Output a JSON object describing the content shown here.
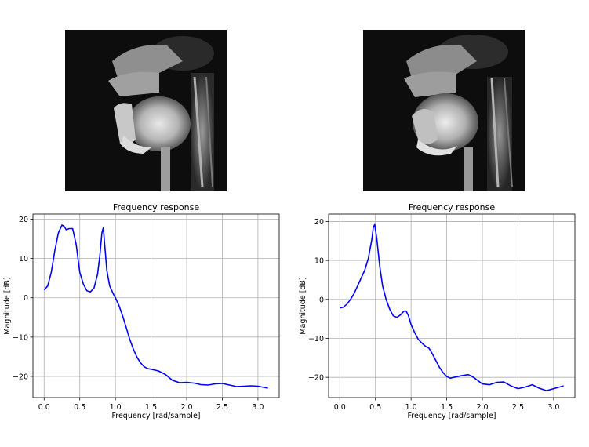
{
  "images": [
    {
      "label": "MRI sagittal frame 1"
    },
    {
      "label": "MRI sagittal frame 2"
    }
  ],
  "chart_data": [
    {
      "type": "line",
      "title": "Frequency response",
      "xlabel": "Frequency [rad/sample]",
      "ylabel": "Magnitude [dB]",
      "xlim": [
        -0.157,
        3.298
      ],
      "ylim": [
        -25.4,
        21.3
      ],
      "xticks": [
        0.0,
        0.5,
        1.0,
        1.5,
        2.0,
        2.5,
        3.0
      ],
      "xtick_labels": [
        "0.0",
        "0.5",
        "1.0",
        "1.5",
        "2.0",
        "2.5",
        "3.0"
      ],
      "yticks": [
        -20,
        -10,
        0,
        10,
        20
      ],
      "ytick_labels": [
        "−20",
        "−10",
        "0",
        "10",
        "20"
      ],
      "grid": true,
      "series": [
        {
          "name": "response",
          "color": "#0000ff",
          "x": [
            0.0,
            0.05,
            0.1,
            0.15,
            0.2,
            0.25,
            0.28,
            0.31,
            0.35,
            0.4,
            0.45,
            0.5,
            0.55,
            0.6,
            0.65,
            0.7,
            0.75,
            0.78,
            0.81,
            0.83,
            0.85,
            0.88,
            0.92,
            0.97,
            1.0,
            1.05,
            1.1,
            1.15,
            1.2,
            1.25,
            1.3,
            1.35,
            1.4,
            1.45,
            1.5,
            1.6,
            1.7,
            1.8,
            1.9,
            2.0,
            2.1,
            2.2,
            2.3,
            2.4,
            2.5,
            2.6,
            2.7,
            2.8,
            2.9,
            3.0,
            3.14
          ],
          "y": [
            2.0,
            3.0,
            6.5,
            12.0,
            16.5,
            18.5,
            18.2,
            17.3,
            17.6,
            17.6,
            13.5,
            6.5,
            3.5,
            1.8,
            1.5,
            2.5,
            6.0,
            10.5,
            16.5,
            17.8,
            13.5,
            7.0,
            3.0,
            1.0,
            0.0,
            -2.0,
            -4.5,
            -7.5,
            -10.5,
            -13.0,
            -15.0,
            -16.5,
            -17.5,
            -18.0,
            -18.2,
            -18.6,
            -19.5,
            -21.0,
            -21.6,
            -21.5,
            -21.7,
            -22.1,
            -22.2,
            -21.9,
            -21.8,
            -22.2,
            -22.6,
            -22.5,
            -22.4,
            -22.5,
            -23.0
          ]
        }
      ]
    },
    {
      "type": "line",
      "title": "Frequency response",
      "xlabel": "Frequency [rad/sample]",
      "ylabel": "Magnitude [dB]",
      "xlim": [
        -0.157,
        3.298
      ],
      "ylim": [
        -25.2,
        21.9
      ],
      "xticks": [
        0.0,
        0.5,
        1.0,
        1.5,
        2.0,
        2.5,
        3.0
      ],
      "xtick_labels": [
        "0.0",
        "0.5",
        "1.0",
        "1.5",
        "2.0",
        "2.5",
        "3.0"
      ],
      "yticks": [
        -20,
        -10,
        0,
        10,
        20
      ],
      "ytick_labels": [
        "−20",
        "−10",
        "0",
        "10",
        "20"
      ],
      "grid": true,
      "series": [
        {
          "name": "response",
          "color": "#0000ff",
          "x": [
            0.0,
            0.05,
            0.1,
            0.15,
            0.2,
            0.25,
            0.3,
            0.35,
            0.4,
            0.45,
            0.47,
            0.49,
            0.52,
            0.56,
            0.6,
            0.65,
            0.7,
            0.75,
            0.8,
            0.85,
            0.9,
            0.93,
            0.96,
            1.0,
            1.05,
            1.1,
            1.15,
            1.2,
            1.25,
            1.3,
            1.35,
            1.4,
            1.45,
            1.5,
            1.55,
            1.6,
            1.7,
            1.8,
            1.85,
            1.9,
            2.0,
            2.1,
            2.2,
            2.3,
            2.4,
            2.5,
            2.6,
            2.7,
            2.8,
            2.9,
            3.0,
            3.14
          ],
          "y": [
            -2.2,
            -2.0,
            -1.2,
            0.0,
            1.5,
            3.5,
            5.5,
            7.5,
            10.5,
            15.5,
            18.5,
            19.2,
            15.5,
            8.5,
            3.5,
            0.0,
            -2.5,
            -4.2,
            -4.6,
            -4.0,
            -3.0,
            -3.0,
            -4.0,
            -6.5,
            -8.5,
            -10.2,
            -11.2,
            -12.0,
            -12.5,
            -14.0,
            -15.8,
            -17.5,
            -18.8,
            -19.8,
            -20.2,
            -20.0,
            -19.6,
            -19.3,
            -19.7,
            -20.3,
            -21.7,
            -21.9,
            -21.3,
            -21.2,
            -22.2,
            -22.9,
            -22.5,
            -21.9,
            -22.8,
            -23.4,
            -22.9,
            -22.2
          ]
        }
      ]
    }
  ]
}
